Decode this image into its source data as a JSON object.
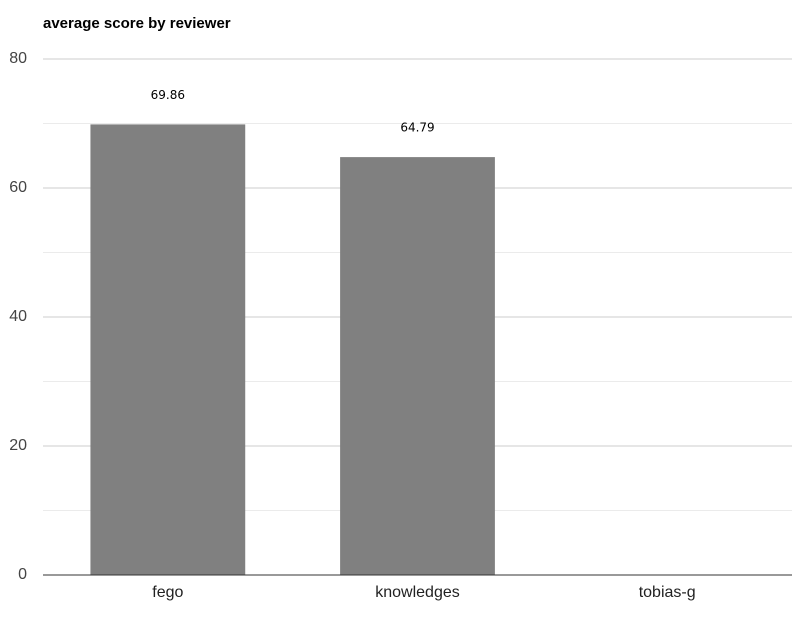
{
  "chart_data": {
    "type": "bar",
    "title": "average score by reviewer",
    "categories": [
      "fego",
      "knowledges",
      "tobias-g"
    ],
    "values": [
      69.86,
      64.79,
      null
    ],
    "color": "#808080",
    "ylim": [
      0,
      80
    ],
    "yticks": [
      0,
      20,
      40,
      60,
      80
    ],
    "minor_yticks": [
      10,
      30,
      50,
      70
    ],
    "grid": true,
    "data_labels": true
  }
}
